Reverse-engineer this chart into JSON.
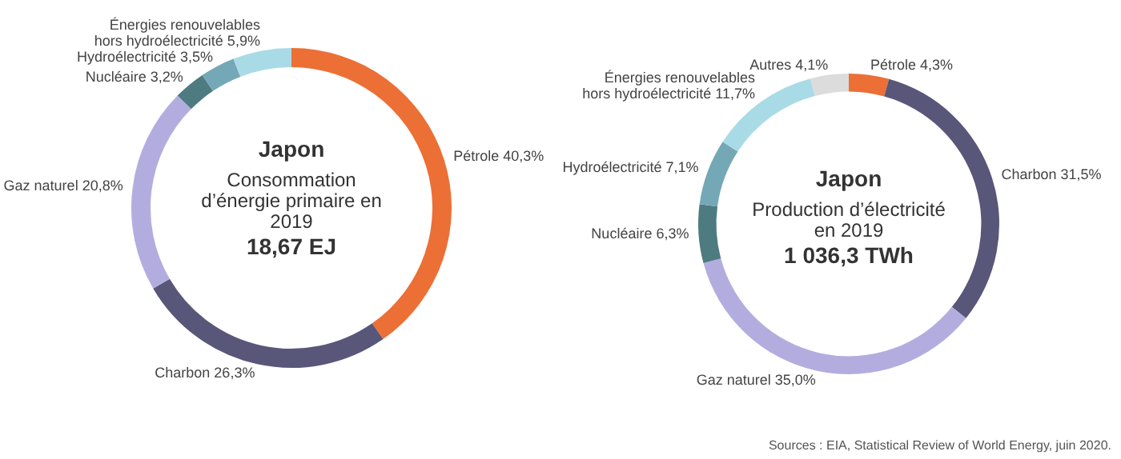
{
  "chart_data": [
    {
      "type": "donut",
      "title": "Japon",
      "subtitle": "Consommation d’énergie primaire en 2019",
      "annotations": [
        "18,67 EJ"
      ],
      "categories": [
        "Pétrole",
        "Charbon",
        "Gaz naturel",
        "Nucléaire",
        "Hydroélectricité",
        "Énergies renouvelables hors hydroélectricité"
      ],
      "values": [
        40.3,
        26.3,
        20.8,
        3.2,
        3.5,
        5.9
      ],
      "value_labels": [
        "40,3%",
        "26,3%",
        "20,8%",
        "3,2%",
        "3,5%",
        "5,9%"
      ],
      "colors": [
        "#ec6f35",
        "#585779",
        "#b3addf",
        "#4e7b80",
        "#74a8b6",
        "#a9dbe7"
      ],
      "legend": false
    },
    {
      "type": "donut",
      "title": "Japon",
      "subtitle": "Production d’électricité en 2019",
      "annotations": [
        "1 036,3 TWh",
        "Sources : EIA, Statistical Review of World Energy, juin 2020."
      ],
      "categories": [
        "Pétrole",
        "Charbon",
        "Gaz naturel",
        "Nucléaire",
        "Hydroélectricité",
        "Énergies renouvelables hors hydroélectricité",
        "Autres"
      ],
      "values": [
        4.3,
        31.5,
        35.0,
        6.3,
        7.1,
        11.7,
        4.1
      ],
      "value_labels": [
        "4,3%",
        "31,5%",
        "35,0%",
        "6,3%",
        "7,1%",
        "11,7%",
        "4,1%"
      ],
      "colors": [
        "#ec6f35",
        "#585779",
        "#b3addf",
        "#4e7b80",
        "#74a8b6",
        "#a9dbe7",
        "#dcdcdc"
      ],
      "legend": false
    }
  ]
}
